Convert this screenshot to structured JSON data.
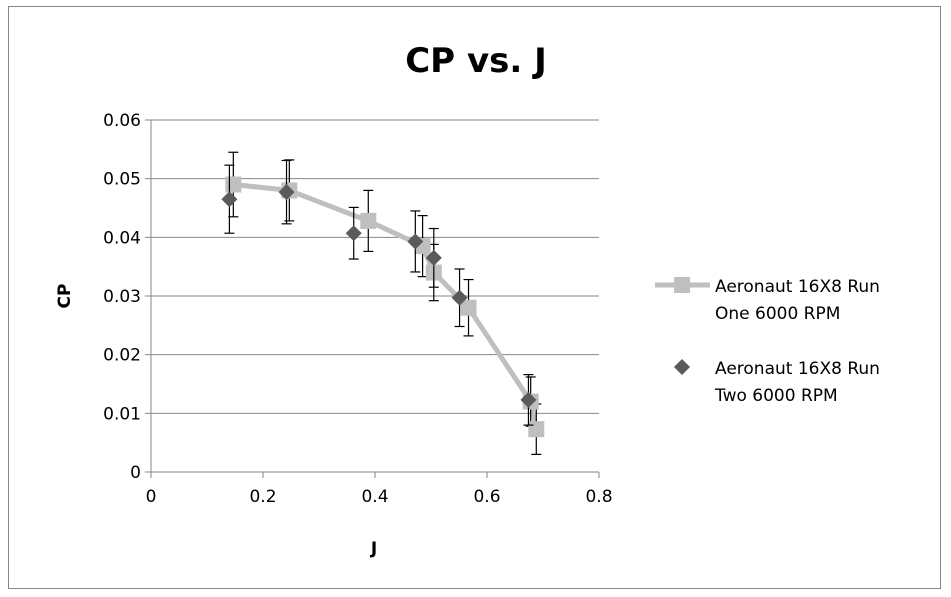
{
  "chart_data": {
    "type": "scatter",
    "title": "CP vs. J",
    "xlabel": "J",
    "ylabel": "CP",
    "xlim": [
      0,
      0.8
    ],
    "ylim": [
      0,
      0.06
    ],
    "x_ticks": [
      "0",
      "0.2",
      "0.4",
      "0.6",
      "0.8"
    ],
    "y_ticks": [
      "0",
      "0.01",
      "0.02",
      "0.03",
      "0.04",
      "0.05",
      "0.06"
    ],
    "grid": "horizontal",
    "legend_position": "right",
    "series": [
      {
        "name": "Aeronaut 16X8 Run One 6000 RPM",
        "legend_lines": [
          "Aeronaut 16X8 Run",
          "One 6000 RPM"
        ],
        "marker": "square",
        "connected": true,
        "marker_color": "#bfbfbf",
        "line_color": "#bfbfbf",
        "x": [
          0.147,
          0.247,
          0.388,
          0.485,
          0.505,
          0.567,
          0.678,
          0.688
        ],
        "y": [
          0.049,
          0.048,
          0.0428,
          0.0385,
          0.034,
          0.028,
          0.012,
          0.0073
        ],
        "error": [
          0.0055,
          0.0052,
          0.0052,
          0.0052,
          0.0048,
          0.0048,
          0.0042,
          0.0043
        ]
      },
      {
        "name": "Aeronaut 16X8 Run Two 6000 RPM",
        "legend_lines": [
          "Aeronaut 16X8 Run",
          "Two 6000 RPM"
        ],
        "marker": "diamond",
        "connected": false,
        "marker_color": "#5a5a5a",
        "x": [
          0.14,
          0.242,
          0.362,
          0.472,
          0.505,
          0.551,
          0.674
        ],
        "y": [
          0.0465,
          0.0477,
          0.0407,
          0.0393,
          0.0365,
          0.0297,
          0.0123
        ],
        "error": [
          0.0058,
          0.0054,
          0.0044,
          0.0052,
          0.005,
          0.0049,
          0.0043
        ]
      }
    ]
  }
}
